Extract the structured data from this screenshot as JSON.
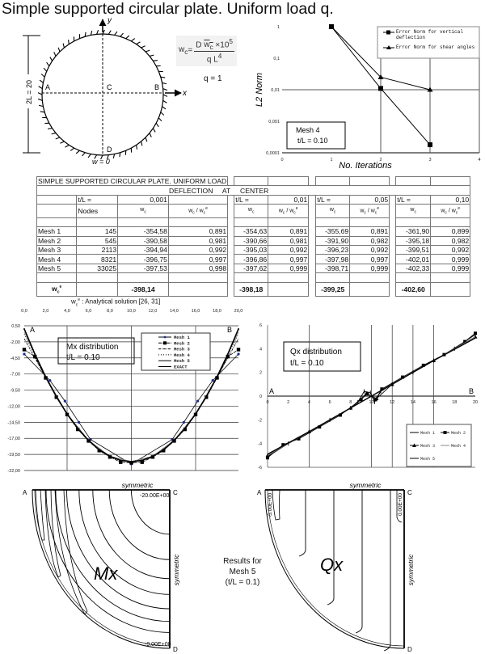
{
  "title": "Simple supported circular plate. Uniform load q.",
  "diagram": {
    "dimension_label": "2L = 20",
    "axis_x": "x",
    "axis_y": "y",
    "points": {
      "A": "A",
      "B": "B",
      "C": "C",
      "D": "D"
    },
    "boundary_label": "w = 0"
  },
  "formula": {
    "lhs": "w",
    "lhs_sub": "c",
    "eq": "=",
    "num_d": "D ",
    "num_w": "w",
    "num_w_sub": "c",
    "num_rest": " ×10",
    "num_exp": "5",
    "den": "q L",
    "den_exp": "4"
  },
  "load_label": "q = 1",
  "table": {
    "title": "SIMPLE SUPPORTED CIRCULAR PLATE. UNIFORM LOAD",
    "subtitle": "DEFLECTION     AT     CENTER",
    "tl_label": "t/L =",
    "tl_values": [
      "0,001",
      "0,01",
      "0,05",
      "0,10"
    ],
    "nodes_label": "Nodes",
    "w": "w",
    "sub_c": "c",
    "sup_e": "e",
    "slash": " / ",
    "rows": [
      {
        "mesh": "Mesh 1",
        "nodes": "145",
        "vals": [
          [
            "-354,58",
            "0,891"
          ],
          [
            "-354,63",
            "0,891"
          ],
          [
            "-355,69",
            "0,891"
          ],
          [
            "-361,90",
            "0,899"
          ]
        ]
      },
      {
        "mesh": "Mesh 2",
        "nodes": "545",
        "vals": [
          [
            "-390,58",
            "0,981"
          ],
          [
            "-390,66",
            "0,981"
          ],
          [
            "-391,90",
            "0,982"
          ],
          [
            "-395,18",
            "0,982"
          ]
        ]
      },
      {
        "mesh": "Mesh 3",
        "nodes": "2113",
        "vals": [
          [
            "-394,94",
            "0,992"
          ],
          [
            "-395,03",
            "0,992"
          ],
          [
            "-396,23",
            "0,992"
          ],
          [
            "-399,51",
            "0,992"
          ]
        ]
      },
      {
        "mesh": "Mesh 4",
        "nodes": "8321",
        "vals": [
          [
            "-396,75",
            "0,997"
          ],
          [
            "-396,86",
            "0,997"
          ],
          [
            "-397,98",
            "0,997"
          ],
          [
            "-402,01",
            "0,999"
          ]
        ]
      },
      {
        "mesh": "Mesh 5",
        "nodes": "33025",
        "vals": [
          [
            "-397,53",
            "0,998"
          ],
          [
            "-397,62",
            "0,999"
          ],
          [
            "-398,71",
            "0,999"
          ],
          [
            "-402,33",
            "0,999"
          ]
        ]
      }
    ],
    "exact": [
      "-398,14",
      "-398,18",
      "-399,25",
      "-402,60"
    ],
    "note_text": " : Analytical solution [26, 31]"
  },
  "contours": {
    "symmetric": "symmetric",
    "mx_label": "Mx",
    "qx_label": "Qx",
    "mx_top_value": "-20.00E+00",
    "mx_bottom_value": "-9.00E+00",
    "qx_left_value": "-5.00E+00",
    "qx_right_value": "0.00E+00",
    "results_lines": [
      "Results for",
      "Mesh 5",
      "(t/L = 0.1)"
    ]
  },
  "chart_data": [
    {
      "type": "line",
      "ylog": true,
      "xlabel": "No. Iterations",
      "ylabel": "L2 Norm",
      "xlim": [
        0,
        4
      ],
      "ylim": [
        0.0001,
        1
      ],
      "xticks": [
        "0",
        "1",
        "2",
        "3",
        "4"
      ],
      "yticks": [
        "1",
        "0,1",
        "0,01",
        "0,001",
        "0,0001"
      ],
      "grid": true,
      "legend": "top-right",
      "annotation": [
        "Mesh 4",
        "t/L = 0.10"
      ],
      "series": [
        {
          "name": "Error Norm for vertical deflection",
          "marker": "square",
          "x": [
            1,
            2,
            3
          ],
          "y": [
            1,
            0.011,
            0.00018
          ]
        },
        {
          "name": "Error Norm for shear angles",
          "marker": "triangle",
          "x": [
            1,
            2,
            3
          ],
          "y": [
            1,
            0.025,
            0.01
          ]
        }
      ]
    },
    {
      "type": "line",
      "xlim": [
        0,
        20
      ],
      "ylim": [
        -22,
        0.5
      ],
      "xticks": [
        "0,0",
        "2,0",
        "4,0",
        "6,0",
        "8,0",
        "10,0",
        "12,0",
        "14,0",
        "16,0",
        "18,0",
        "20,0"
      ],
      "yticks": [
        "0,50",
        "-2,00",
        "-4,50",
        "-7,00",
        "-9,50",
        "-12,00",
        "-14,50",
        "-17,00",
        "-19,50",
        "-22,00"
      ],
      "grid": true,
      "legend": "top-right",
      "point_labels": [
        "A",
        "B"
      ],
      "annotation": [
        "Mx distribution",
        "t/L = 0.10"
      ],
      "series": [
        {
          "name": "Mesh 1",
          "x": [
            0,
            2.4,
            3.8,
            5.1,
            6.2,
            10,
            13.8,
            14.9,
            16.2,
            17.6,
            20
          ],
          "y": [
            -3.9,
            -8.0,
            -11.2,
            -14.5,
            -17.2,
            -21.0,
            -17.2,
            -14.5,
            -11.2,
            -8.0,
            -3.9
          ]
        },
        {
          "name": "Mesh 2",
          "x": [
            0,
            1,
            2,
            3,
            4,
            5,
            6,
            7,
            8,
            9,
            10,
            11,
            12,
            13,
            14,
            15,
            16,
            17,
            18,
            19,
            20
          ],
          "y": [
            -3.2,
            -4.3,
            -7.6,
            -10.6,
            -13.3,
            -15.6,
            -17.4,
            -18.9,
            -19.9,
            -20.7,
            -20.8,
            -20.7,
            -19.9,
            -18.9,
            -17.4,
            -15.6,
            -13.3,
            -10.6,
            -7.6,
            -4.3,
            -3.2
          ]
        },
        {
          "name": "Mesh 3",
          "x": [
            0,
            2,
            4,
            6,
            8,
            10,
            12,
            14,
            16,
            18,
            20
          ],
          "y": [
            -1.5,
            -7.5,
            -13.2,
            -17.3,
            -19.8,
            -20.6,
            -19.8,
            -17.3,
            -13.2,
            -7.5,
            -1.5
          ]
        },
        {
          "name": "Mesh 4",
          "x": [
            0,
            2,
            4,
            6,
            8,
            10,
            12,
            14,
            16,
            18,
            20
          ],
          "y": [
            -0.8,
            -7.4,
            -13.2,
            -17.3,
            -19.8,
            -20.6,
            -19.8,
            -17.3,
            -13.2,
            -7.4,
            -0.8
          ]
        },
        {
          "name": "Mesh 5",
          "x": [
            0,
            2,
            4,
            6,
            8,
            10,
            12,
            14,
            16,
            18,
            20
          ],
          "y": [
            -0.5,
            -7.4,
            -13.2,
            -17.3,
            -19.8,
            -20.6,
            -19.8,
            -17.3,
            -13.2,
            -7.4,
            -0.5
          ]
        },
        {
          "name": "EXACT",
          "x": [
            0,
            1,
            2,
            3,
            4,
            5,
            6,
            7,
            8,
            9,
            10,
            11,
            12,
            13,
            14,
            15,
            16,
            17,
            18,
            19,
            20
          ],
          "y": [
            0,
            -3.92,
            -7.43,
            -10.52,
            -13.2,
            -15.47,
            -17.33,
            -18.77,
            -19.8,
            -20.42,
            -20.63,
            -20.42,
            -19.8,
            -18.77,
            -17.33,
            -15.47,
            -13.2,
            -10.52,
            -7.43,
            -3.92,
            0
          ]
        }
      ]
    },
    {
      "type": "line",
      "xlim": [
        0,
        20
      ],
      "ylim": [
        -6,
        6
      ],
      "xticks": [
        "0",
        "2",
        "4",
        "6",
        "8",
        "10",
        "12",
        "14",
        "16",
        "18",
        "20"
      ],
      "yticks": [
        "6",
        "4",
        "2",
        "0",
        "-2",
        "-4",
        "-6"
      ],
      "grid": true,
      "legend": "bottom-right",
      "point_labels": [
        "A",
        "B"
      ],
      "annotation": [
        "Qx distribution",
        "t/L = 0.10"
      ],
      "series": [
        {
          "name": "Mesh 1",
          "x": [
            0,
            2,
            4,
            6,
            8,
            8.7,
            9.3,
            9.9,
            10.3,
            10.9,
            12,
            14,
            16,
            18,
            20
          ],
          "y": [
            -5.1,
            -4.0,
            -3.0,
            -2.0,
            -1.0,
            -0.5,
            0.4,
            0.3,
            -0.5,
            0.4,
            1.0,
            2.0,
            3.0,
            4.0,
            5.2
          ]
        },
        {
          "name": "Mesh 2",
          "x": [
            0,
            1.5,
            3,
            5,
            7,
            9,
            9.6,
            10.4,
            11,
            13,
            15,
            17,
            19,
            20
          ],
          "y": [
            -5.2,
            -4.1,
            -3.6,
            -2.6,
            -1.6,
            -0.3,
            0.2,
            -0.3,
            0.6,
            1.6,
            2.6,
            3.5,
            4.6,
            5.3
          ]
        },
        {
          "name": "Mesh 3",
          "x": [
            0,
            4,
            8,
            9.5,
            10.5,
            12,
            16,
            20
          ],
          "y": [
            -5.0,
            -3.0,
            -1.0,
            0.2,
            -0.2,
            1.0,
            3.0,
            5.0
          ]
        },
        {
          "name": "Mesh 4",
          "x": [
            0,
            4,
            8,
            10,
            12,
            16,
            20
          ],
          "y": [
            -5.0,
            -3.0,
            -1.0,
            0.0,
            1.0,
            3.0,
            5.0
          ]
        },
        {
          "name": "Mesh 5",
          "x": [
            0,
            4,
            8,
            10,
            12,
            16,
            20
          ],
          "y": [
            -4.9,
            -3.0,
            -1.0,
            0.0,
            1.0,
            3.0,
            4.9
          ]
        }
      ]
    }
  ]
}
